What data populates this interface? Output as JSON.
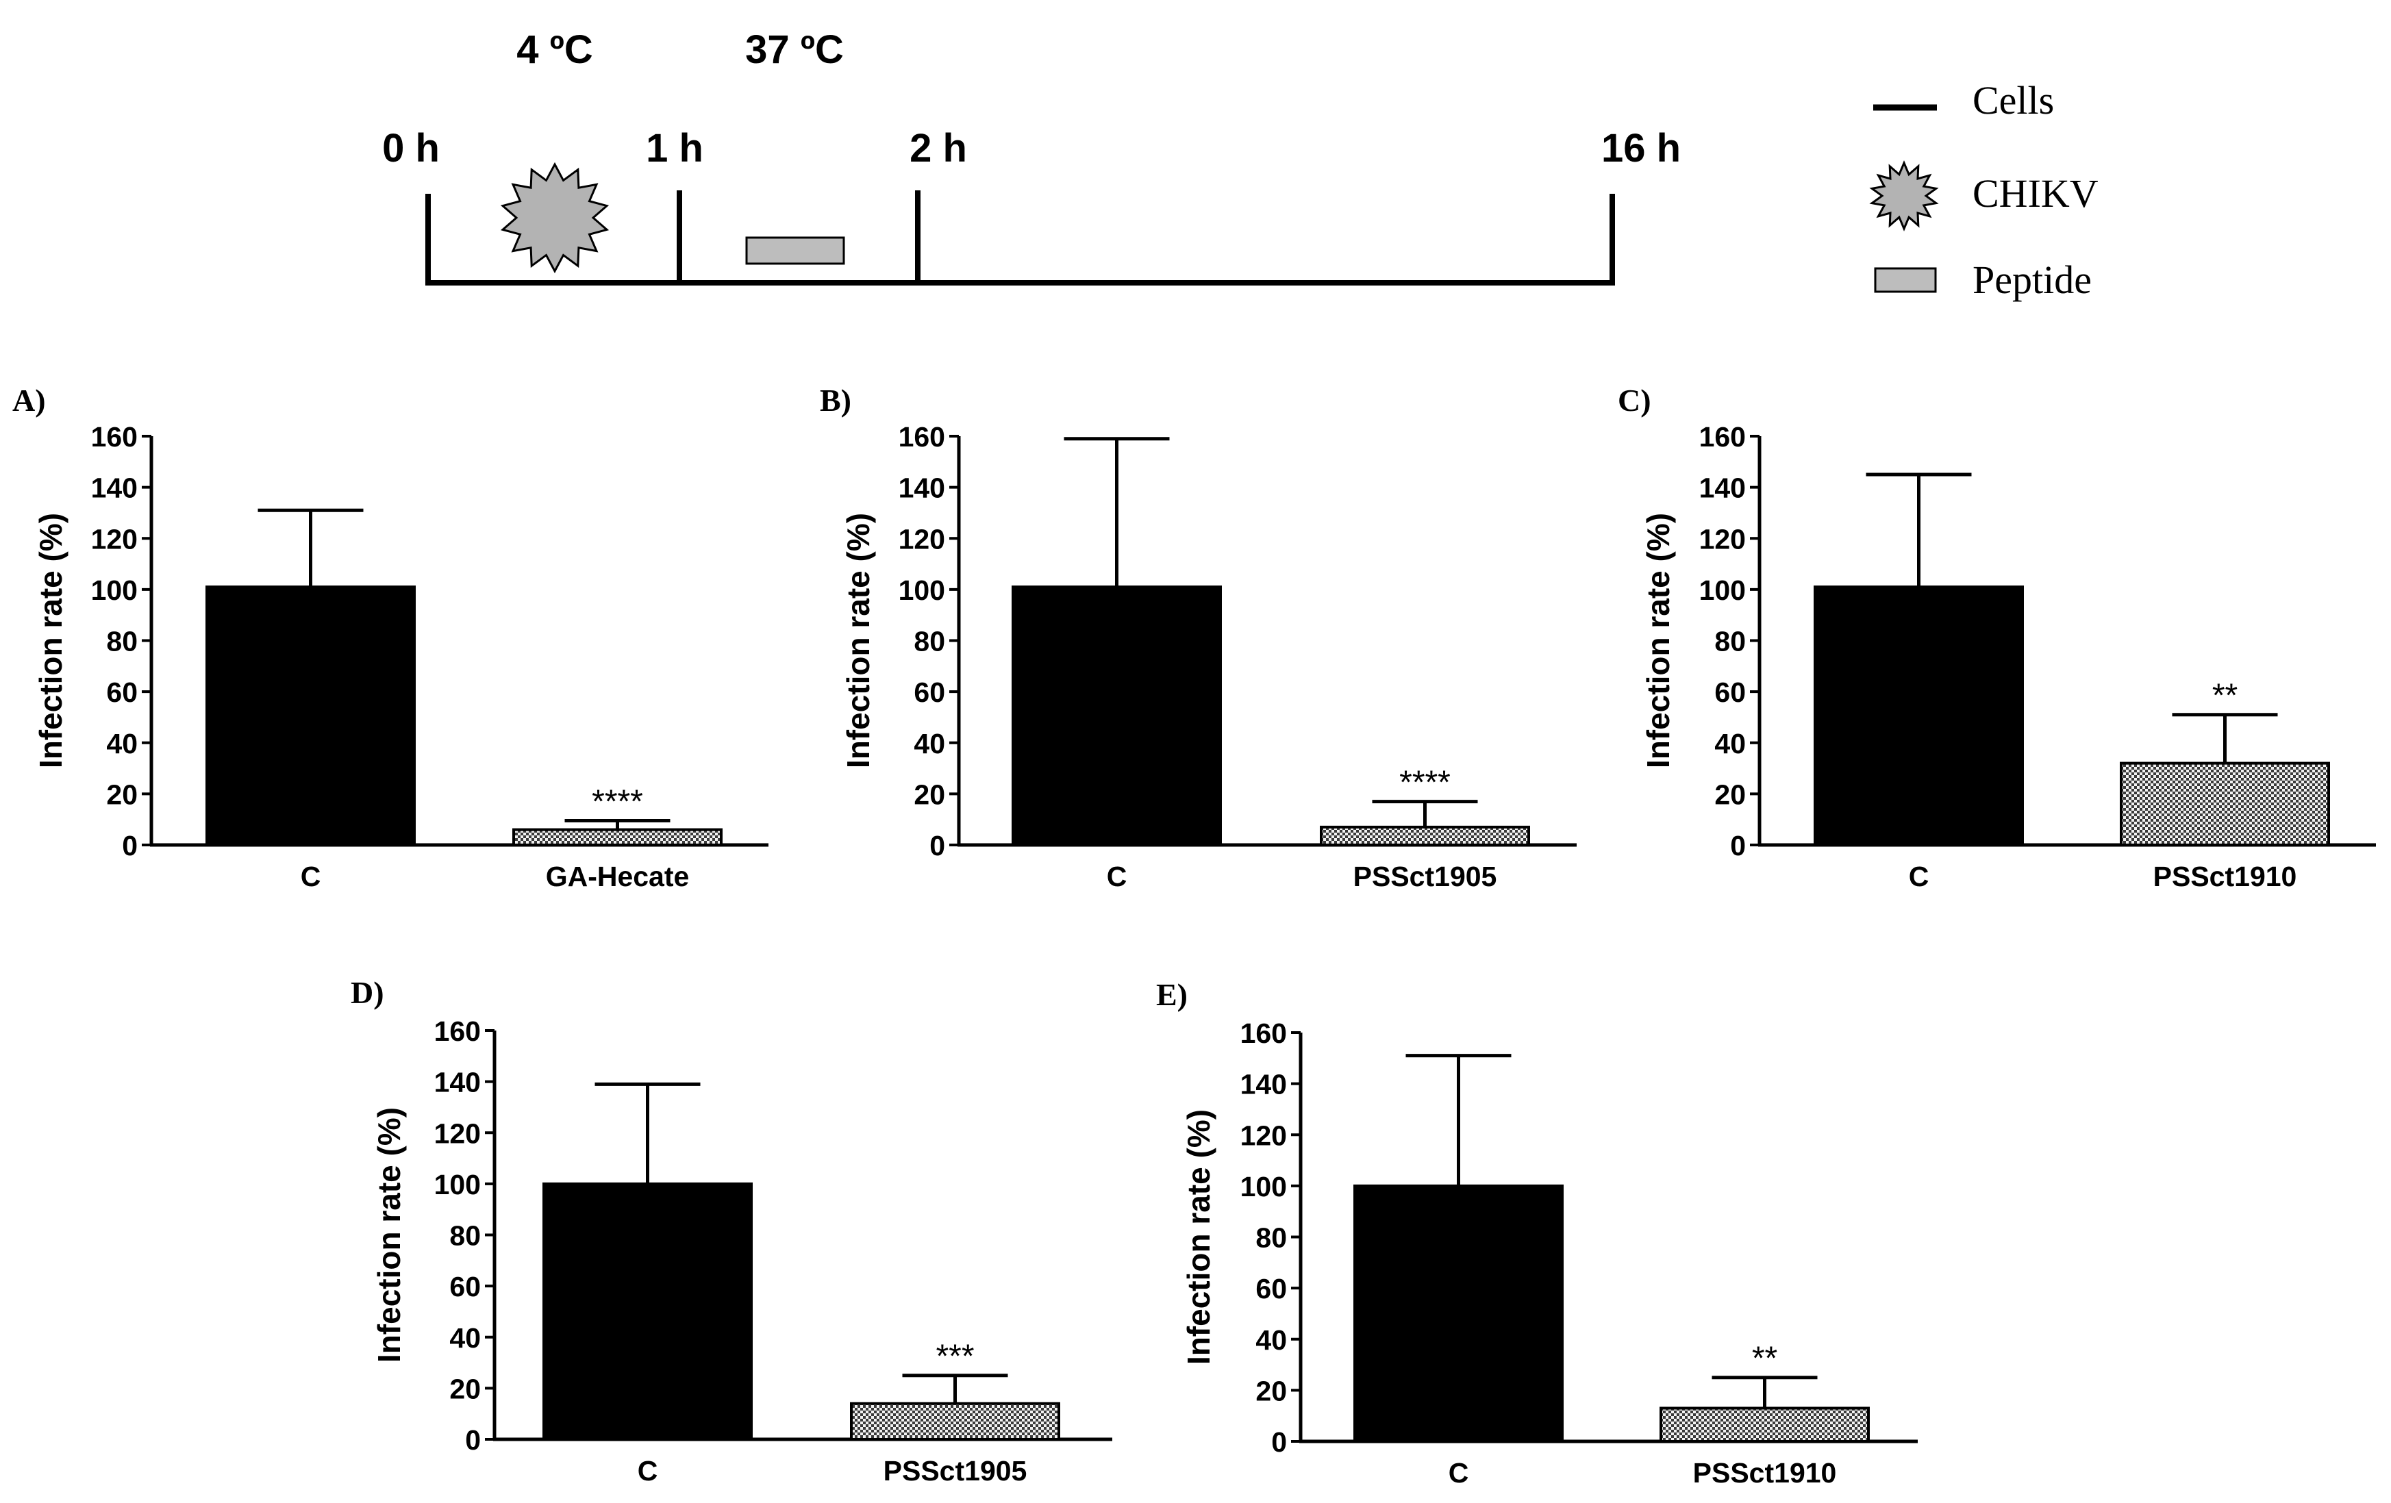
{
  "timeline": {
    "temp_labels": [
      "4 ºC",
      "37 ºC"
    ],
    "time_labels": [
      "0 h",
      "1 h",
      "2 h",
      "16 h"
    ]
  },
  "legend": {
    "items": [
      {
        "label": "Cells",
        "symbol": "line"
      },
      {
        "label": "CHIKV",
        "symbol": "star"
      },
      {
        "label": "Peptide",
        "symbol": "rect"
      }
    ]
  },
  "colors": {
    "control_bar": "#000000",
    "peptide_bar": "#c8c8c8",
    "virus": "#b3b3b3",
    "peptide_box": "#bdbdbd"
  },
  "chart_data": [
    {
      "panel": "A)",
      "type": "bar",
      "ylabel": "Infection rate (%)",
      "ylim": [
        0,
        160
      ],
      "yticks": [
        0,
        20,
        40,
        60,
        80,
        100,
        120,
        140,
        160
      ],
      "categories": [
        "C",
        "GA-Hecate"
      ],
      "values": [
        101,
        6
      ],
      "errors": [
        30,
        3.5
      ],
      "annotations": [
        "",
        "****"
      ]
    },
    {
      "panel": "B)",
      "type": "bar",
      "ylabel": "Infection rate (%)",
      "ylim": [
        0,
        160
      ],
      "yticks": [
        0,
        20,
        40,
        60,
        80,
        100,
        120,
        140,
        160
      ],
      "categories": [
        "C",
        "PSSct1905"
      ],
      "values": [
        101,
        7
      ],
      "errors": [
        58,
        10
      ],
      "annotations": [
        "",
        "****"
      ]
    },
    {
      "panel": "C)",
      "type": "bar",
      "ylabel": "Infection rate (%)",
      "ylim": [
        0,
        160
      ],
      "yticks": [
        0,
        20,
        40,
        60,
        80,
        100,
        120,
        140,
        160
      ],
      "categories": [
        "C",
        "PSSct1910"
      ],
      "values": [
        101,
        32
      ],
      "errors": [
        44,
        19
      ],
      "annotations": [
        "",
        "**"
      ]
    },
    {
      "panel": "D)",
      "type": "bar",
      "ylabel": "Infection rate (%)",
      "ylim": [
        0,
        160
      ],
      "yticks": [
        0,
        20,
        40,
        60,
        80,
        100,
        120,
        140,
        160
      ],
      "categories": [
        "C",
        "PSSct1905"
      ],
      "values": [
        100,
        14
      ],
      "errors": [
        39,
        11
      ],
      "annotations": [
        "",
        "***"
      ]
    },
    {
      "panel": "E)",
      "type": "bar",
      "ylabel": "Infection rate (%)",
      "ylim": [
        0,
        160
      ],
      "yticks": [
        0,
        20,
        40,
        60,
        80,
        100,
        120,
        140,
        160
      ],
      "categories": [
        "C",
        "PSSct1910"
      ],
      "values": [
        100,
        13
      ],
      "errors": [
        51,
        12
      ],
      "annotations": [
        "",
        "**"
      ]
    }
  ]
}
